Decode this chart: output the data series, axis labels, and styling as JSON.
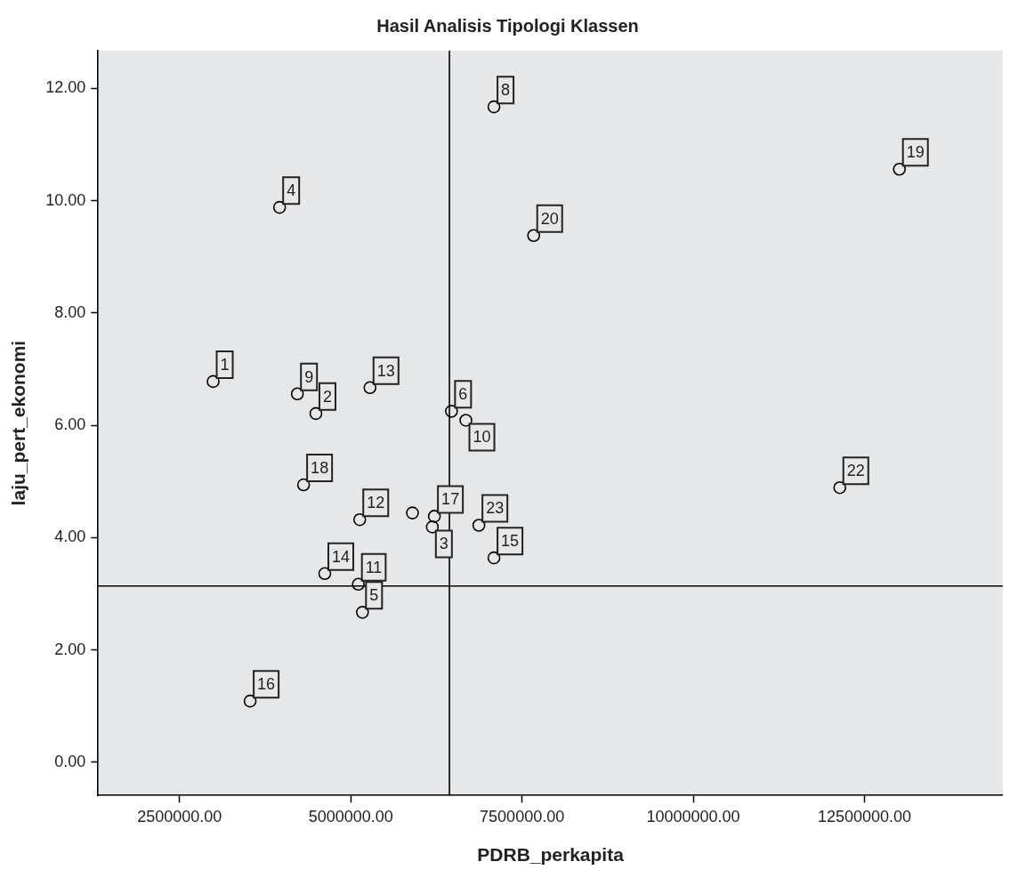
{
  "chart_data": {
    "type": "scatter",
    "title": "Hasil Analisis Tipologi Klassen",
    "xlabel": "PDRB_perkapita",
    "ylabel": "laju_pert_ekonomi",
    "x": [
      2990000,
      4490000,
      6190000,
      3960000,
      5170000,
      6470000,
      7090000,
      4220000,
      6680000,
      5110000,
      5130000,
      5280000,
      4620000,
      7090000,
      3530000,
      6220000,
      4310000,
      13010000,
      7670000,
      12140000,
      6870000,
      5900000
    ],
    "values": [
      6.78,
      6.21,
      4.19,
      9.88,
      2.67,
      6.25,
      11.67,
      6.56,
      6.09,
      3.17,
      4.32,
      6.67,
      3.36,
      3.64,
      1.09,
      4.38,
      4.94,
      10.56,
      9.38,
      4.89,
      4.22,
      4.44
    ],
    "color": "#000000",
    "marker": "circle",
    "grid": false,
    "xlim": [
      1310000,
      14520000
    ],
    "ylim": [
      -0.59,
      12.67
    ],
    "xticks": [
      {
        "value": 2500000,
        "label": "2500000.00"
      },
      {
        "value": 5000000,
        "label": "5000000.00"
      },
      {
        "value": 7500000,
        "label": "7500000.00"
      },
      {
        "value": 10000000,
        "label": "10000000.00"
      },
      {
        "value": 12500000,
        "label": "12500000.00"
      }
    ],
    "yticks": [
      {
        "value": 0,
        "label": "0.00"
      },
      {
        "value": 2,
        "label": "2.00"
      },
      {
        "value": 4,
        "label": "4.00"
      },
      {
        "value": 6,
        "label": "6.00"
      },
      {
        "value": 8,
        "label": "8.00"
      },
      {
        "value": 10,
        "label": "10.00"
      },
      {
        "value": 12,
        "label": "12.00"
      }
    ],
    "ref_lines": [
      {
        "axis": "x",
        "value": 6440000,
        "color": "#000000"
      },
      {
        "axis": "y",
        "value": 3.14,
        "color": "#000000"
      }
    ],
    "annotations": [
      {
        "text": "1",
        "x": 2990000,
        "y": 6.78
      },
      {
        "text": "4",
        "x": 3960000,
        "y": 9.88
      },
      {
        "text": "6",
        "x": 6470000,
        "y": 6.25
      },
      {
        "text": "8",
        "x": 7090000,
        "y": 11.67
      },
      {
        "text": "9",
        "x": 4220000,
        "y": 6.56
      },
      {
        "text": "11",
        "x": 5110000,
        "y": 3.17
      },
      {
        "text": "12",
        "x": 5130000,
        "y": 4.32
      },
      {
        "text": "13",
        "x": 5280000,
        "y": 6.67
      },
      {
        "text": "14",
        "x": 4620000,
        "y": 3.36
      },
      {
        "text": "15",
        "x": 7090000,
        "y": 3.64
      },
      {
        "text": "16",
        "x": 3530000,
        "y": 1.09
      },
      {
        "text": "17",
        "x": 6220000,
        "y": 4.38
      },
      {
        "text": "18",
        "x": 4310000,
        "y": 4.94
      },
      {
        "text": "19",
        "x": 13010000,
        "y": 10.56
      },
      {
        "text": "20",
        "x": 7670000,
        "y": 9.38
      },
      {
        "text": "22",
        "x": 12140000,
        "y": 4.89
      },
      {
        "text": "23",
        "x": 6870000,
        "y": 4.22
      },
      {
        "text": "2",
        "x": 4490000,
        "y": 6.21
      },
      {
        "text": "3",
        "x": 6190000,
        "y": 4.19
      },
      {
        "text": "5",
        "x": 5170000,
        "y": 2.67
      },
      {
        "text": "10",
        "x": 6680000,
        "y": 6.09
      }
    ]
  }
}
